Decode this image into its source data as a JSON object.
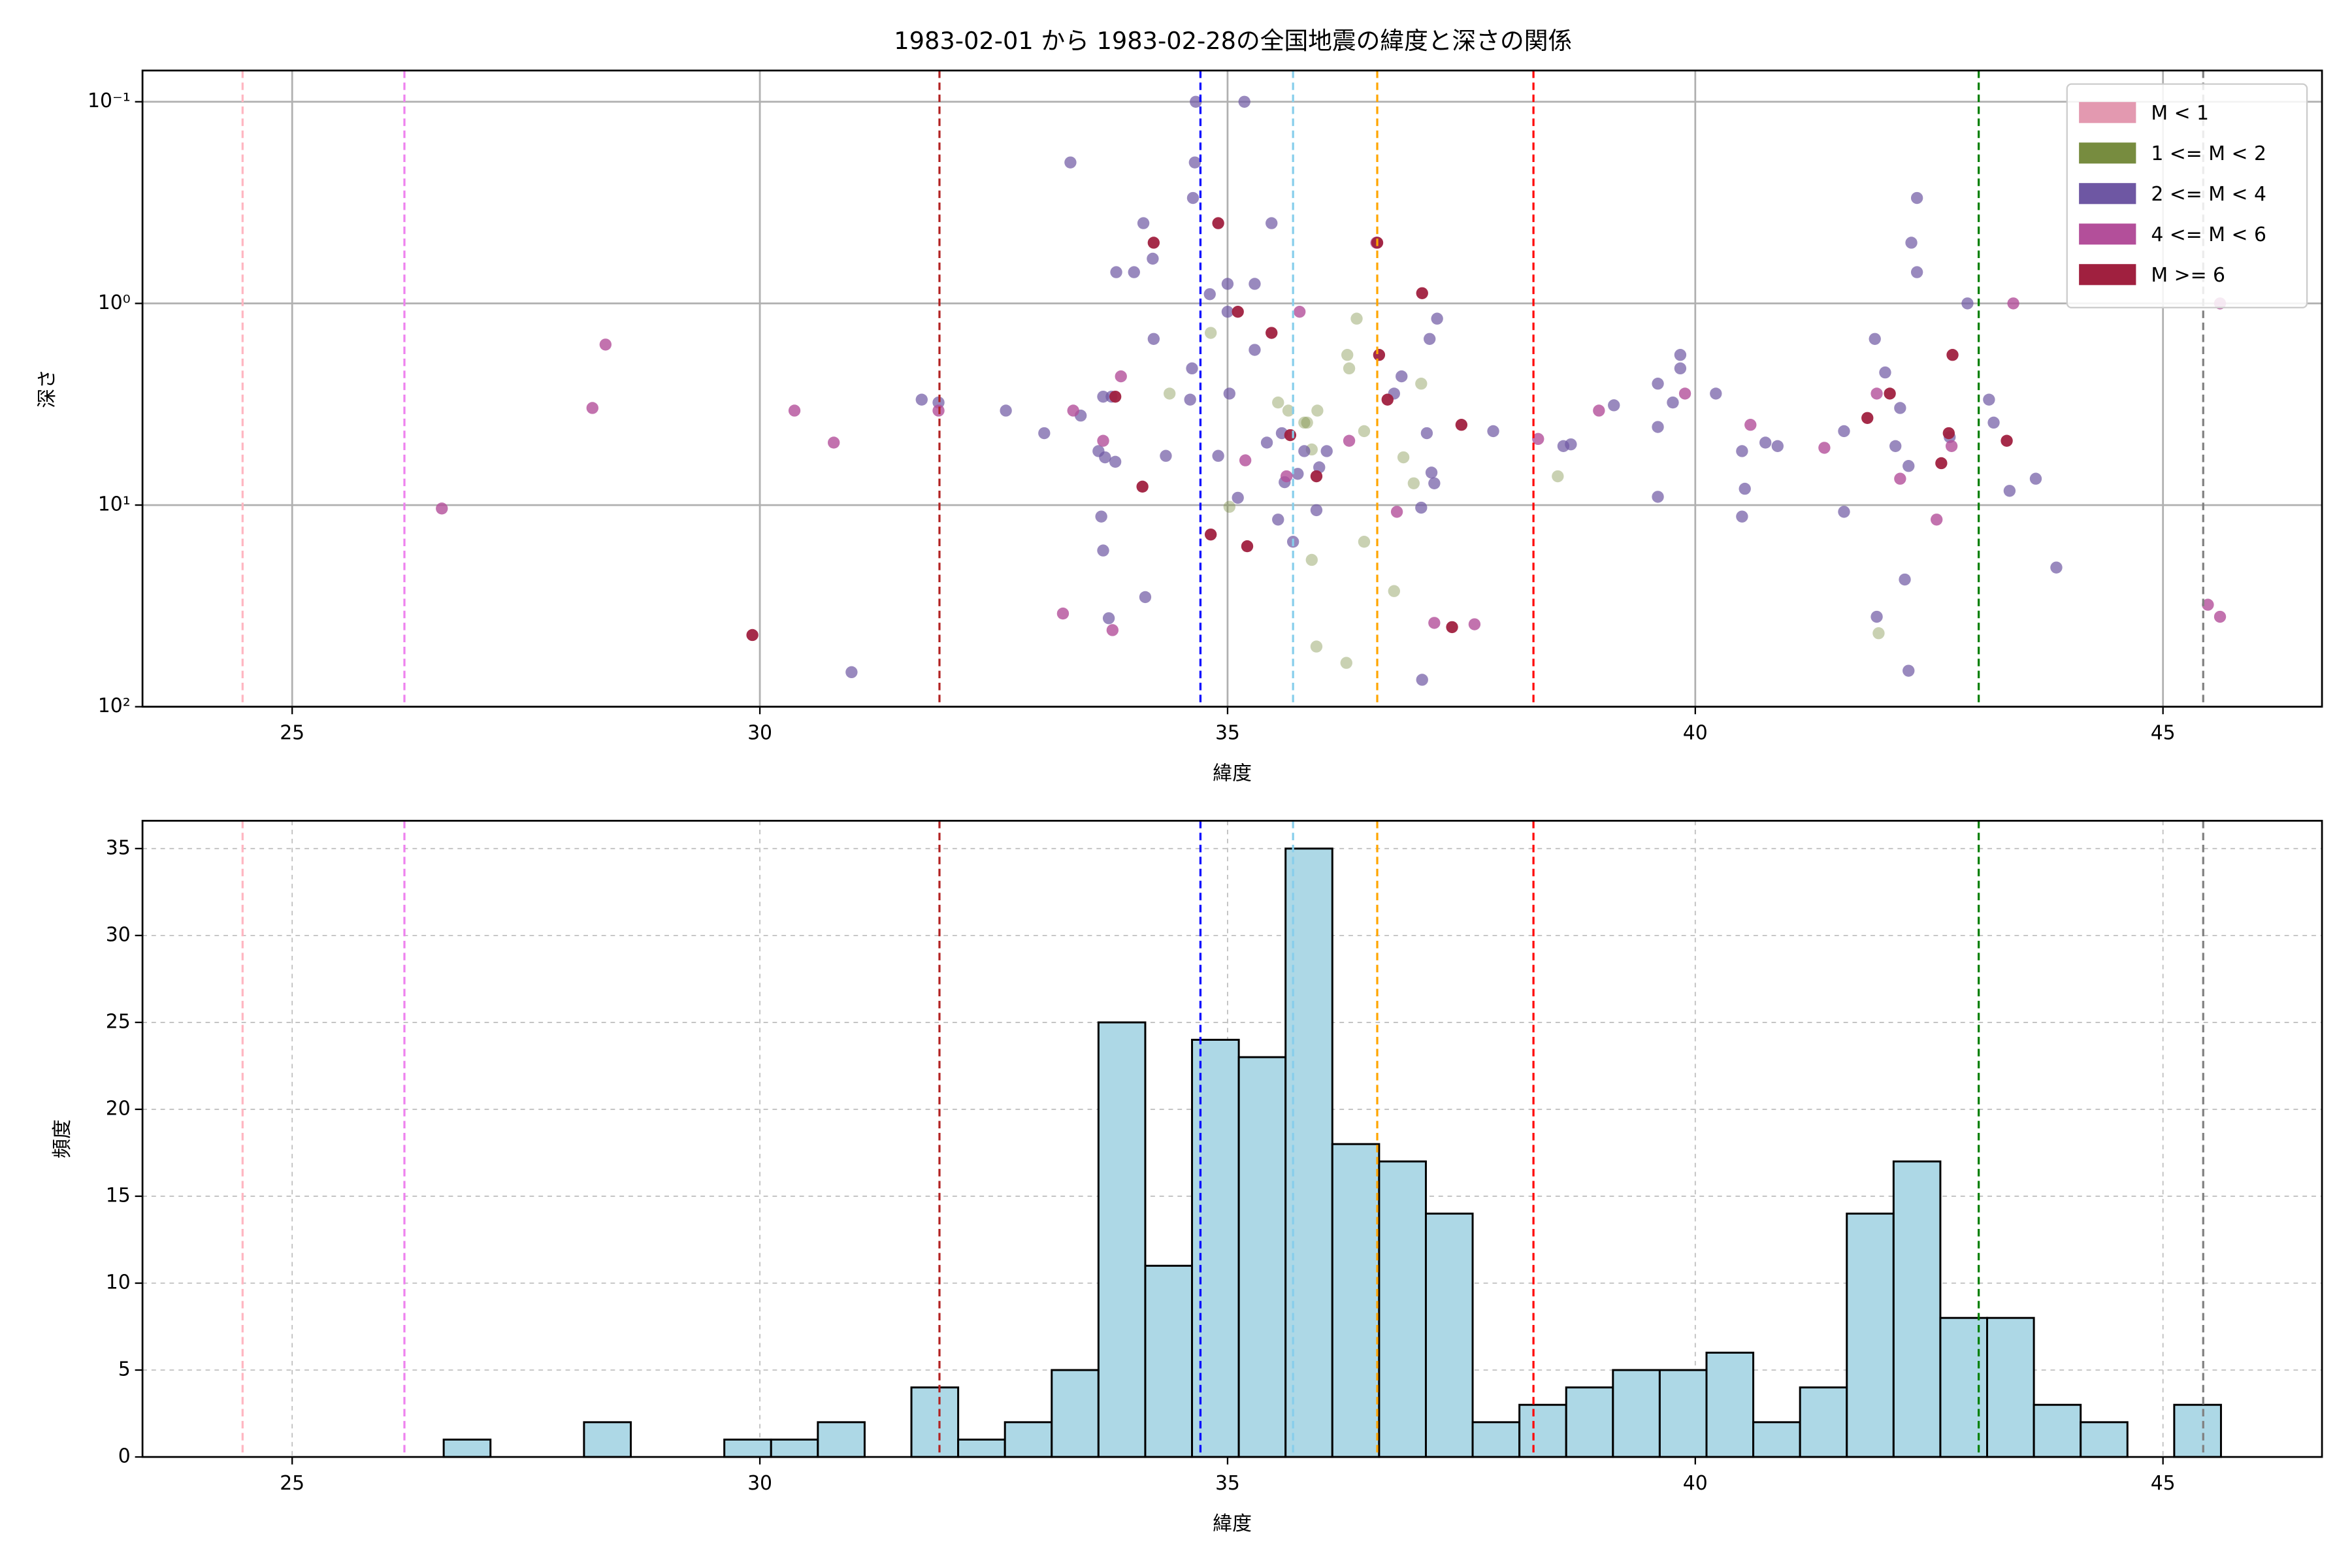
{
  "chart_data": [
    {
      "type": "scatter",
      "title": "1983-02-01 から 1983-02-28の全国地震の緯度と深さの関係",
      "xlabel": "緯度",
      "ylabel": "深さ",
      "xlim": [
        23.4,
        46.7
      ],
      "xticks": [
        25,
        30,
        35,
        40,
        45
      ],
      "yscale": "log",
      "ylim": [
        100,
        0.07
      ],
      "yticks": [
        {
          "value": 0.1,
          "label": "10⁻¹"
        },
        {
          "value": 1,
          "label": "10⁰"
        },
        {
          "value": 10,
          "label": "10¹"
        },
        {
          "value": 100,
          "label": "10²"
        }
      ],
      "grid": true,
      "legend": "upper right",
      "vlines": [
        {
          "x": 24.47,
          "color": "#ffb6c1"
        },
        {
          "x": 26.2,
          "color": "#ee82ee"
        },
        {
          "x": 31.92,
          "color": "#b22222"
        },
        {
          "x": 34.71,
          "color": "#0000ff"
        },
        {
          "x": 35.7,
          "color": "#87ceeb"
        },
        {
          "x": 36.6,
          "color": "#ffa500"
        },
        {
          "x": 38.27,
          "color": "#ff0000"
        },
        {
          "x": 43.03,
          "color": "#008000"
        },
        {
          "x": 45.43,
          "color": "#808080"
        }
      ],
      "series": [
        {
          "name": "M < 1",
          "color": "#e399b0",
          "alpha": 0.7,
          "x": [],
          "y": []
        },
        {
          "name": "1 <= M < 2",
          "color": "#778c3f",
          "alpha": 0.4,
          "x": [
            34.82,
            34.38,
            35.54,
            35.65,
            35.96,
            35.82,
            35.9,
            36.38,
            36.28,
            36.3,
            36.46,
            36.88,
            37.07,
            36.99,
            35.02,
            36.46,
            35.9,
            36.78,
            35.95,
            36.27,
            38.53,
            41.96,
            35.85
          ],
          "y": [
            1.4,
            2.8,
            3.1,
            3.4,
            3.4,
            3.9,
            5.3,
            1.19,
            1.8,
            2.1,
            4.3,
            5.8,
            2.5,
            7.8,
            10.2,
            15.2,
            18.7,
            26.7,
            50.3,
            60.6,
            7.2,
            43.2,
            3.9
          ]
        },
        {
          "name": "2 <= M < 4",
          "color": "#6e57a3",
          "alpha": 0.7,
          "x": [
            34.66,
            35.18,
            34.65,
            33.32,
            34.63,
            35.47,
            34.1,
            34.2,
            33.81,
            34.0,
            35.0,
            35.29,
            34.21,
            35.0,
            35.29,
            34.81,
            33.67,
            33.76,
            33.43,
            32.63,
            33.04,
            33.62,
            33.69,
            33.8,
            34.34,
            34.6,
            34.62,
            35.02,
            34.9,
            35.42,
            35.58,
            35.82,
            36.06,
            35.98,
            35.75,
            35.61,
            35.11,
            35.54,
            35.95,
            35.7,
            33.65,
            33.67,
            33.73,
            34.12,
            30.98,
            36.78,
            37.13,
            37.18,
            37.07,
            37.08,
            37.21,
            37.84,
            37.24,
            37.16,
            36.86,
            38.59,
            38.67,
            39.13,
            39.6,
            39.6,
            39.6,
            39.84,
            39.84,
            39.76,
            40.22,
            40.5,
            40.53,
            40.5,
            40.75,
            40.88,
            41.59,
            41.59,
            41.92,
            42.03,
            41.94,
            42.14,
            42.19,
            42.24,
            42.28,
            42.28,
            42.37,
            42.31,
            42.37,
            42.91,
            43.14,
            43.19,
            43.36,
            43.64,
            43.86,
            42.72,
            31.73,
            31.91
          ],
          "y": [
            0.1,
            0.1,
            0.2,
            0.2,
            0.3,
            0.4,
            0.4,
            0.6,
            0.7,
            0.7,
            0.8,
            0.8,
            1.5,
            1.1,
            1.7,
            0.9,
            2.9,
            2.9,
            3.6,
            3.4,
            4.4,
            5.4,
            5.8,
            6.1,
            5.7,
            3.0,
            2.1,
            2.8,
            5.7,
            4.9,
            4.4,
            5.4,
            5.4,
            6.5,
            7.0,
            7.7,
            9.2,
            11.8,
            10.6,
            15.2,
            11.4,
            16.8,
            36.4,
            28.6,
            67.4,
            2.8,
            4.4,
            6.9,
            10.3,
            73.5,
            7.8,
            4.3,
            1.19,
            1.5,
            2.3,
            5.1,
            5.0,
            3.2,
            2.5,
            4.1,
            9.1,
            1.8,
            2.1,
            3.1,
            2.8,
            5.4,
            8.3,
            11.4,
            4.9,
            5.1,
            4.3,
            10.8,
            1.5,
            2.2,
            35.8,
            5.1,
            3.3,
            23.4,
            66.3,
            6.4,
            0.3,
            0.5,
            0.7,
            1.0,
            3.0,
            3.9,
            8.5,
            7.4,
            20.4,
            4.6,
            3.0,
            3.1
          ]
        },
        {
          "name": "4 <= M < 6",
          "color": "#b34f9a",
          "alpha": 0.8,
          "x": [
            26.6,
            28.21,
            28.35,
            30.37,
            30.79,
            31.91,
            33.35,
            33.24,
            33.77,
            33.86,
            33.67,
            35.19,
            35.63,
            35.77,
            36.3,
            36.59,
            36.81,
            37.21,
            37.64,
            38.32,
            38.97,
            39.89,
            40.59,
            41.38,
            41.94,
            42.19,
            42.58,
            42.74,
            43.4,
            45.48,
            45.61,
            45.61
          ],
          "y": [
            10.4,
            3.3,
            1.6,
            3.4,
            4.9,
            3.4,
            3.4,
            34.5,
            41.7,
            2.3,
            4.8,
            6.0,
            7.2,
            1.1,
            4.8,
            0.5,
            10.8,
            38.4,
            39.0,
            4.7,
            3.4,
            2.8,
            4.0,
            5.2,
            2.8,
            7.4,
            11.8,
            5.1,
            1.0,
            31.2,
            35.8,
            1.0
          ]
        },
        {
          "name": "M >= 6",
          "color": "#a0203f",
          "alpha": 0.95,
          "x": [
            34.21,
            34.9,
            36.6,
            37.08,
            35.11,
            35.47,
            36.62,
            36.71,
            33.8,
            35.67,
            37.5,
            34.09,
            35.95,
            34.82,
            35.21,
            29.92,
            41.84,
            42.08,
            42.75,
            42.71,
            42.63,
            43.33,
            37.4
          ],
          "y": [
            0.5,
            0.4,
            0.5,
            0.89,
            1.1,
            1.4,
            1.8,
            3.0,
            2.9,
            4.5,
            4.0,
            8.1,
            7.2,
            14.0,
            16.0,
            44.1,
            3.7,
            2.8,
            1.8,
            4.4,
            6.2,
            4.8,
            40.3
          ]
        }
      ]
    },
    {
      "type": "histogram",
      "xlabel": "緯度",
      "ylabel": "頻度",
      "xlim": [
        23.4,
        46.7
      ],
      "xticks": [
        25,
        30,
        35,
        40,
        45
      ],
      "ylim": [
        0,
        36.6
      ],
      "yticks": [
        0,
        5,
        10,
        15,
        20,
        25,
        30,
        35
      ],
      "grid": true,
      "color": "#add8e6",
      "edgecolor": "#000000",
      "vlines": [
        {
          "x": 24.47,
          "color": "#ffb6c1"
        },
        {
          "x": 26.2,
          "color": "#ee82ee"
        },
        {
          "x": 31.92,
          "color": "#b22222"
        },
        {
          "x": 34.71,
          "color": "#0000ff"
        },
        {
          "x": 35.7,
          "color": "#87ceeb"
        },
        {
          "x": 36.6,
          "color": "#ffa500"
        },
        {
          "x": 38.27,
          "color": "#ff0000"
        },
        {
          "x": 43.03,
          "color": "#008000"
        },
        {
          "x": 45.43,
          "color": "#808080"
        }
      ],
      "bins": [
        26.62,
        27.12,
        27.62,
        28.12,
        28.62,
        29.12,
        29.62,
        30.12,
        30.62,
        31.12,
        31.62,
        32.12,
        32.62,
        33.12,
        33.62,
        34.12,
        34.62,
        35.12,
        35.62,
        36.12,
        36.62,
        37.12,
        37.62,
        38.12,
        38.62,
        39.12,
        39.62,
        40.12,
        40.62,
        41.12,
        41.62,
        42.12,
        42.62,
        43.12,
        43.62,
        44.12,
        44.62,
        45.12,
        45.62
      ],
      "values": [
        1,
        0,
        0,
        2,
        0,
        0,
        1,
        1,
        2,
        0,
        4,
        1,
        2,
        5,
        25,
        11,
        24,
        23,
        35,
        18,
        17,
        14,
        2,
        3,
        4,
        5,
        5,
        6,
        2,
        4,
        14,
        17,
        8,
        8,
        3,
        2,
        0,
        3
      ]
    }
  ]
}
